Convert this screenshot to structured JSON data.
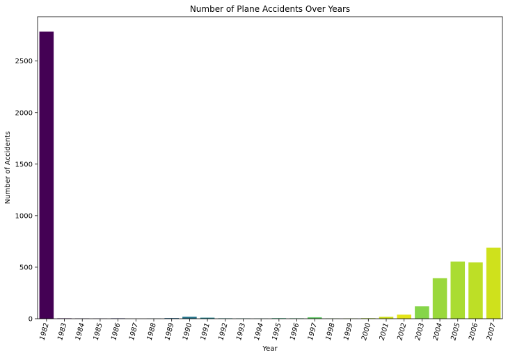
{
  "chart_data": {
    "type": "bar",
    "title": "Number of Plane Accidents Over Years",
    "xlabel": "Year",
    "ylabel": "Number of Accidents",
    "ylim": [
      0,
      2930
    ],
    "yticks": [
      0,
      500,
      1000,
      1500,
      2000,
      2500
    ],
    "grid": false,
    "legend": "none",
    "categories": [
      "1982",
      "1983",
      "1984",
      "1985",
      "1986",
      "1987",
      "1988",
      "1989",
      "1990",
      "1991",
      "1992",
      "1993",
      "1994",
      "1995",
      "1996",
      "1997",
      "1998",
      "1999",
      "2000",
      "2001",
      "2002",
      "2003",
      "2004",
      "2005",
      "2006",
      "2007"
    ],
    "values": [
      2785,
      4,
      3,
      2,
      4,
      0,
      2,
      6,
      20,
      10,
      4,
      3,
      2,
      5,
      4,
      14,
      3,
      3,
      5,
      19,
      40,
      120,
      393,
      555,
      546,
      690
    ],
    "colors": [
      "#440154",
      "#471365",
      "#482575",
      "#463480",
      "#414487",
      "#3b528b",
      "#355f8d",
      "#2f6c8e",
      "#2a788e",
      "#25848e",
      "#21918c",
      "#1e9c89",
      "#22a884",
      "#2fb47c",
      "#44bf70",
      "#5ec962",
      "#7ad151",
      "#95d840",
      "#b0dd2f",
      "#cde11d",
      "#e4e419",
      "#86d549",
      "#9ad83c",
      "#aadc32",
      "#bddf26",
      "#cfe11c"
    ]
  }
}
